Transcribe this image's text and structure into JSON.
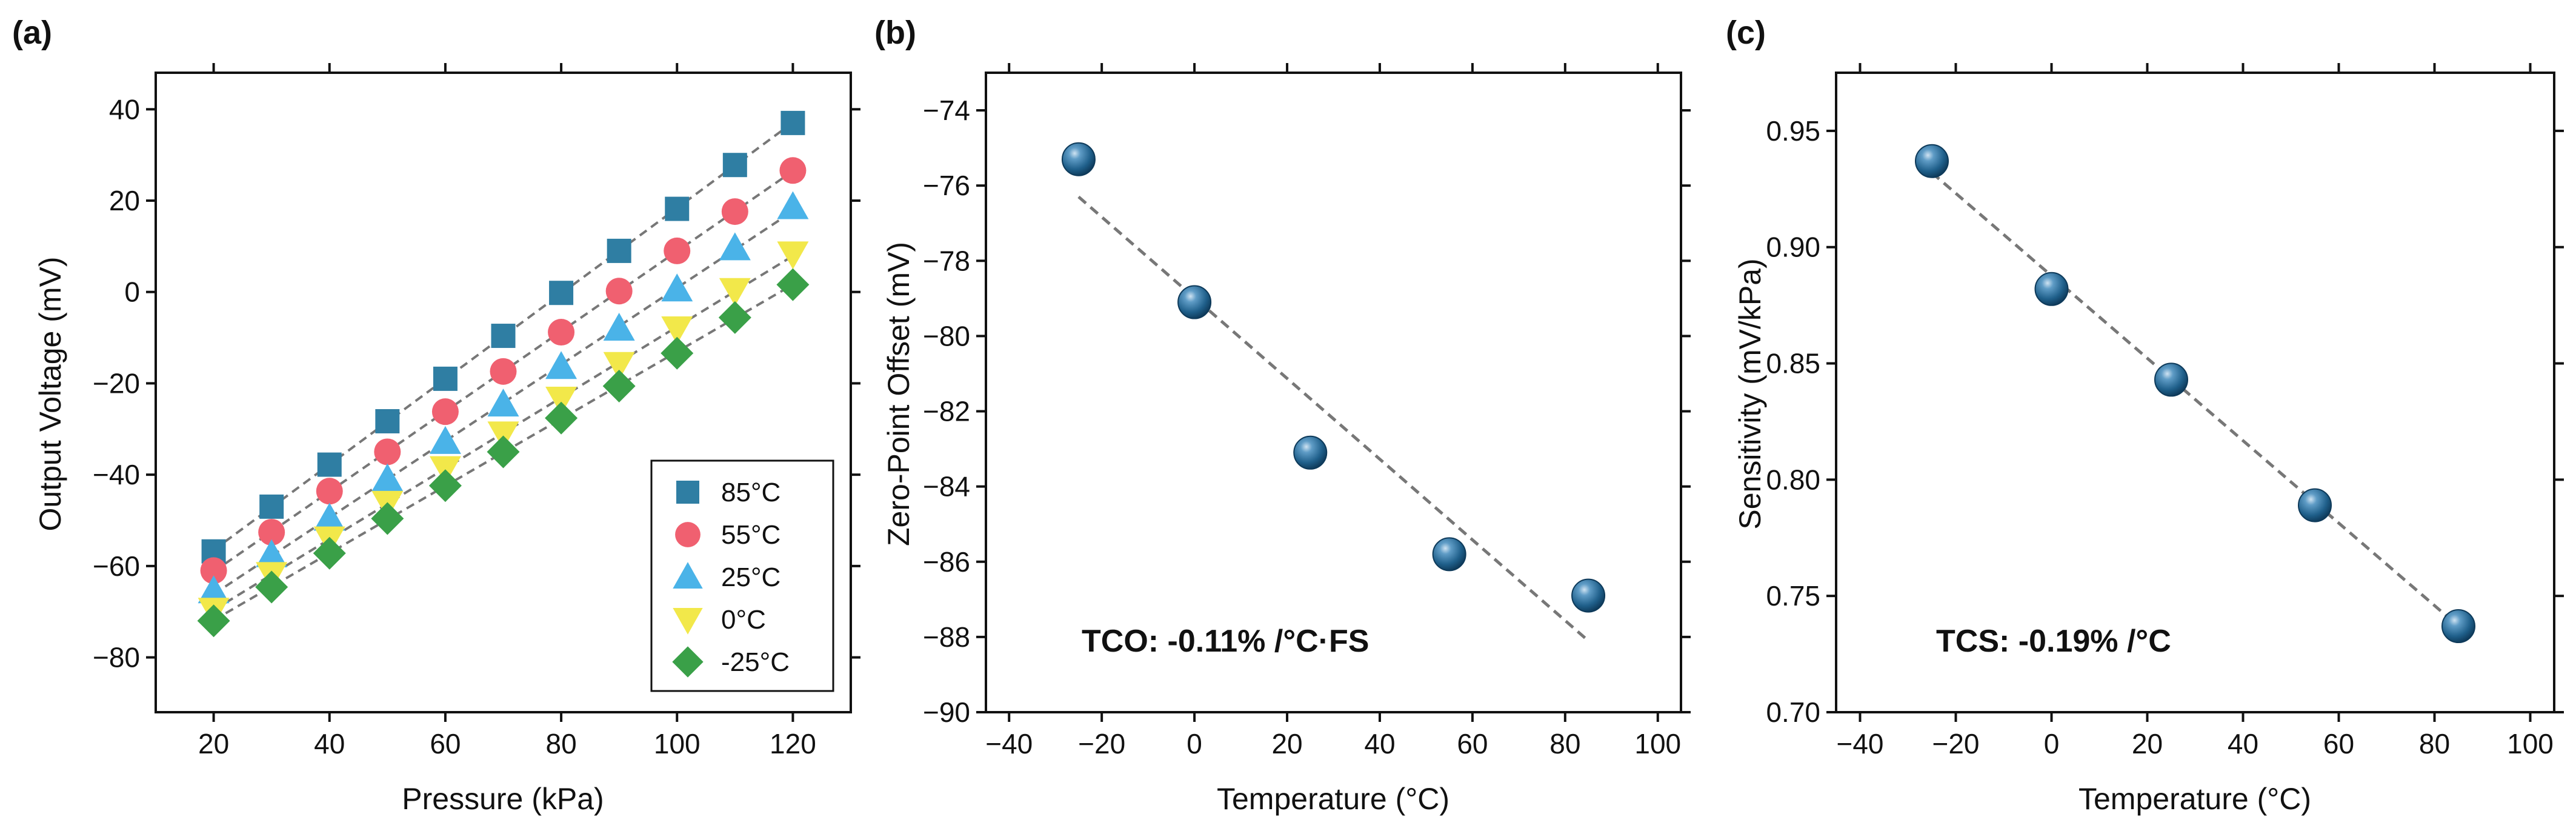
{
  "chart_data": [
    {
      "panel": "(a)",
      "type": "scatter",
      "xlabel": "Pressure (kPa)",
      "ylabel": "Output Voltage (mV)",
      "xlim": [
        10,
        130
      ],
      "ylim": [
        -92,
        48
      ],
      "xticks": [
        20,
        40,
        60,
        80,
        100,
        120
      ],
      "yticks": [
        -80,
        -60,
        -40,
        -20,
        0,
        20,
        40
      ],
      "x": [
        20,
        30,
        40,
        50,
        60,
        70,
        80,
        90,
        100,
        110,
        120
      ],
      "fit_lines": true,
      "legend_position": "bottom-right",
      "series": [
        {
          "name": "85°C",
          "marker": "square",
          "color": "#2f7ea3",
          "values": [
            -56.8,
            -47.0,
            -37.8,
            -28.3,
            -19.0,
            -9.6,
            -0.2,
            9.0,
            18.2,
            27.8,
            37.0
          ]
        },
        {
          "name": "55°C",
          "marker": "circle",
          "color": "#f06070",
          "values": [
            -61.0,
            -52.6,
            -43.6,
            -35.0,
            -26.2,
            -17.4,
            -8.8,
            0.2,
            9.0,
            17.6,
            26.6
          ]
        },
        {
          "name": "25°C",
          "marker": "triangle-up",
          "color": "#4ab3e8",
          "values": [
            -65.5,
            -57.6,
            -49.6,
            -41.0,
            -32.8,
            -24.6,
            -16.4,
            -8.0,
            0.6,
            9.6,
            18.6
          ]
        },
        {
          "name": "0°C",
          "marker": "triangle-down",
          "color": "#f2e84a",
          "values": [
            -69.6,
            -61.8,
            -54.0,
            -46.2,
            -38.6,
            -31.0,
            -23.4,
            -15.8,
            -8.0,
            0.4,
            8.4
          ]
        },
        {
          "name": "-25°C",
          "marker": "diamond",
          "color": "#3aa048",
          "values": [
            -72.0,
            -64.6,
            -57.2,
            -49.6,
            -42.4,
            -35.0,
            -27.6,
            -20.6,
            -13.4,
            -5.6,
            1.6
          ]
        }
      ]
    },
    {
      "panel": "(b)",
      "type": "scatter",
      "xlabel": "Temperature (°C)",
      "ylabel": "Zero-Point Offset (mV)",
      "xlim": [
        -45,
        105
      ],
      "ylim": [
        -90,
        -73
      ],
      "xticks": [
        -40,
        -20,
        0,
        20,
        40,
        60,
        80,
        100
      ],
      "yticks": [
        -90,
        -88,
        -86,
        -84,
        -82,
        -80,
        -78,
        -76,
        -74
      ],
      "x": [
        -25,
        0,
        25,
        55,
        85
      ],
      "values": [
        -75.3,
        -79.1,
        -83.1,
        -85.8,
        -86.9
      ],
      "fit_line": {
        "x": [
          -25,
          85
        ],
        "y": [
          -76.3,
          -88.1
        ]
      },
      "annotation": "TCO: -0.11% /°C·FS",
      "marker_color": "#1f5f8a"
    },
    {
      "panel": "(c)",
      "type": "scatter",
      "xlabel": "Temperature (°C)",
      "ylabel": "Sensitivity (mV/kPa)",
      "xlim": [
        -45,
        105
      ],
      "ylim": [
        0.7,
        0.975
      ],
      "xticks": [
        -40,
        -20,
        0,
        20,
        40,
        60,
        80,
        100
      ],
      "yticks": [
        0.7,
        0.75,
        0.8,
        0.85,
        0.9,
        0.95
      ],
      "ytick_labels": [
        "0.70",
        "0.75",
        "0.80",
        "0.85",
        "0.90",
        "0.95"
      ],
      "x": [
        -25,
        0,
        25,
        55,
        85
      ],
      "values": [
        0.937,
        0.882,
        0.843,
        0.789,
        0.737
      ],
      "fit_line": {
        "x": [
          -25,
          85
        ],
        "y": [
          0.932,
          0.737
        ]
      },
      "annotation": "TCS: -0.19% /°C",
      "marker_color": "#1f5f8a"
    }
  ]
}
